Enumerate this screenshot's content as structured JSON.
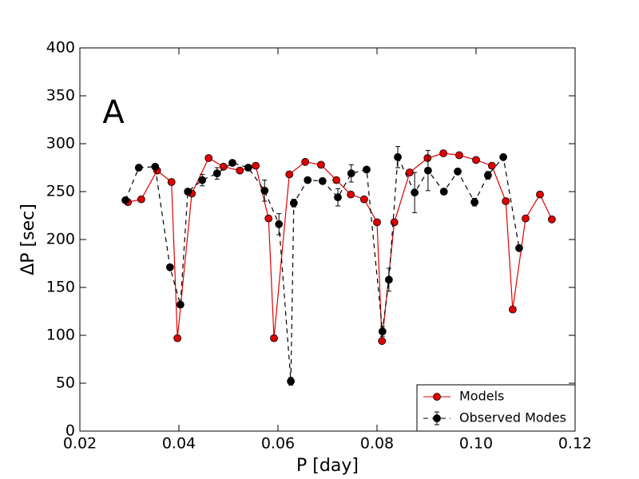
{
  "chart_data": {
    "type": "line",
    "annotations": [
      "A"
    ],
    "xlabel": "P [day]",
    "ylabel": "ΔP [sec]",
    "xlim": [
      0.02,
      0.12
    ],
    "xticks": [
      0.02,
      0.04,
      0.06,
      0.08,
      {
        "value": 0.1,
        "label": "0.10"
      },
      0.12
    ],
    "ylim": [
      0,
      400
    ],
    "yticks": [
      0,
      50,
      100,
      150,
      200,
      250,
      300,
      350,
      400
    ],
    "legend": "lower right",
    "series": [
      {
        "name": "Models",
        "color": "#e00000",
        "style": "solid",
        "x": [
          0.0297,
          0.0324,
          0.0356,
          0.0385,
          0.0397,
          0.0426,
          0.046,
          0.049,
          0.0523,
          0.0555,
          0.0581,
          0.0592,
          0.0623,
          0.0655,
          0.0687,
          0.0718,
          0.0747,
          0.0774,
          0.08,
          0.081,
          0.0835,
          0.0866,
          0.0902,
          0.0934,
          0.0966,
          0.1,
          0.1032,
          0.106,
          0.1074,
          0.11,
          0.1129,
          0.1153
        ],
        "values": [
          239,
          242,
          272,
          260,
          97,
          248,
          285,
          276,
          272,
          277,
          222,
          97,
          268,
          281,
          278,
          262,
          247,
          242,
          218,
          94,
          218,
          270,
          285,
          290,
          288,
          283,
          277,
          240,
          127,
          222,
          247,
          221
        ]
      },
      {
        "name": "Observed Modes",
        "color": "#000000",
        "style": "dashed",
        "x": [
          0.0292,
          0.0319,
          0.0352,
          0.0382,
          0.0403,
          0.0418,
          0.0447,
          0.0477,
          0.0508,
          0.054,
          0.0573,
          0.0602,
          0.0626,
          0.0632,
          0.066,
          0.069,
          0.0721,
          0.0748,
          0.0779,
          0.0811,
          0.0824,
          0.0842,
          0.0876,
          0.0903,
          0.0935,
          0.0963,
          0.0997,
          0.1024,
          0.1055,
          0.1087
        ],
        "values": [
          241,
          275,
          276,
          171,
          132,
          250,
          262,
          269,
          280,
          275,
          251,
          216,
          52,
          238,
          262,
          261,
          244,
          269,
          273,
          104,
          158,
          286,
          249,
          272,
          250,
          271,
          239,
          267,
          286,
          191
        ],
        "errors": [
          2,
          2,
          2,
          2,
          2,
          2,
          6,
          6,
          3,
          3,
          11,
          11,
          4,
          4,
          2,
          2,
          9,
          9,
          2,
          5,
          12,
          11,
          21,
          21,
          3,
          3,
          4,
          4,
          2,
          2
        ]
      }
    ]
  }
}
